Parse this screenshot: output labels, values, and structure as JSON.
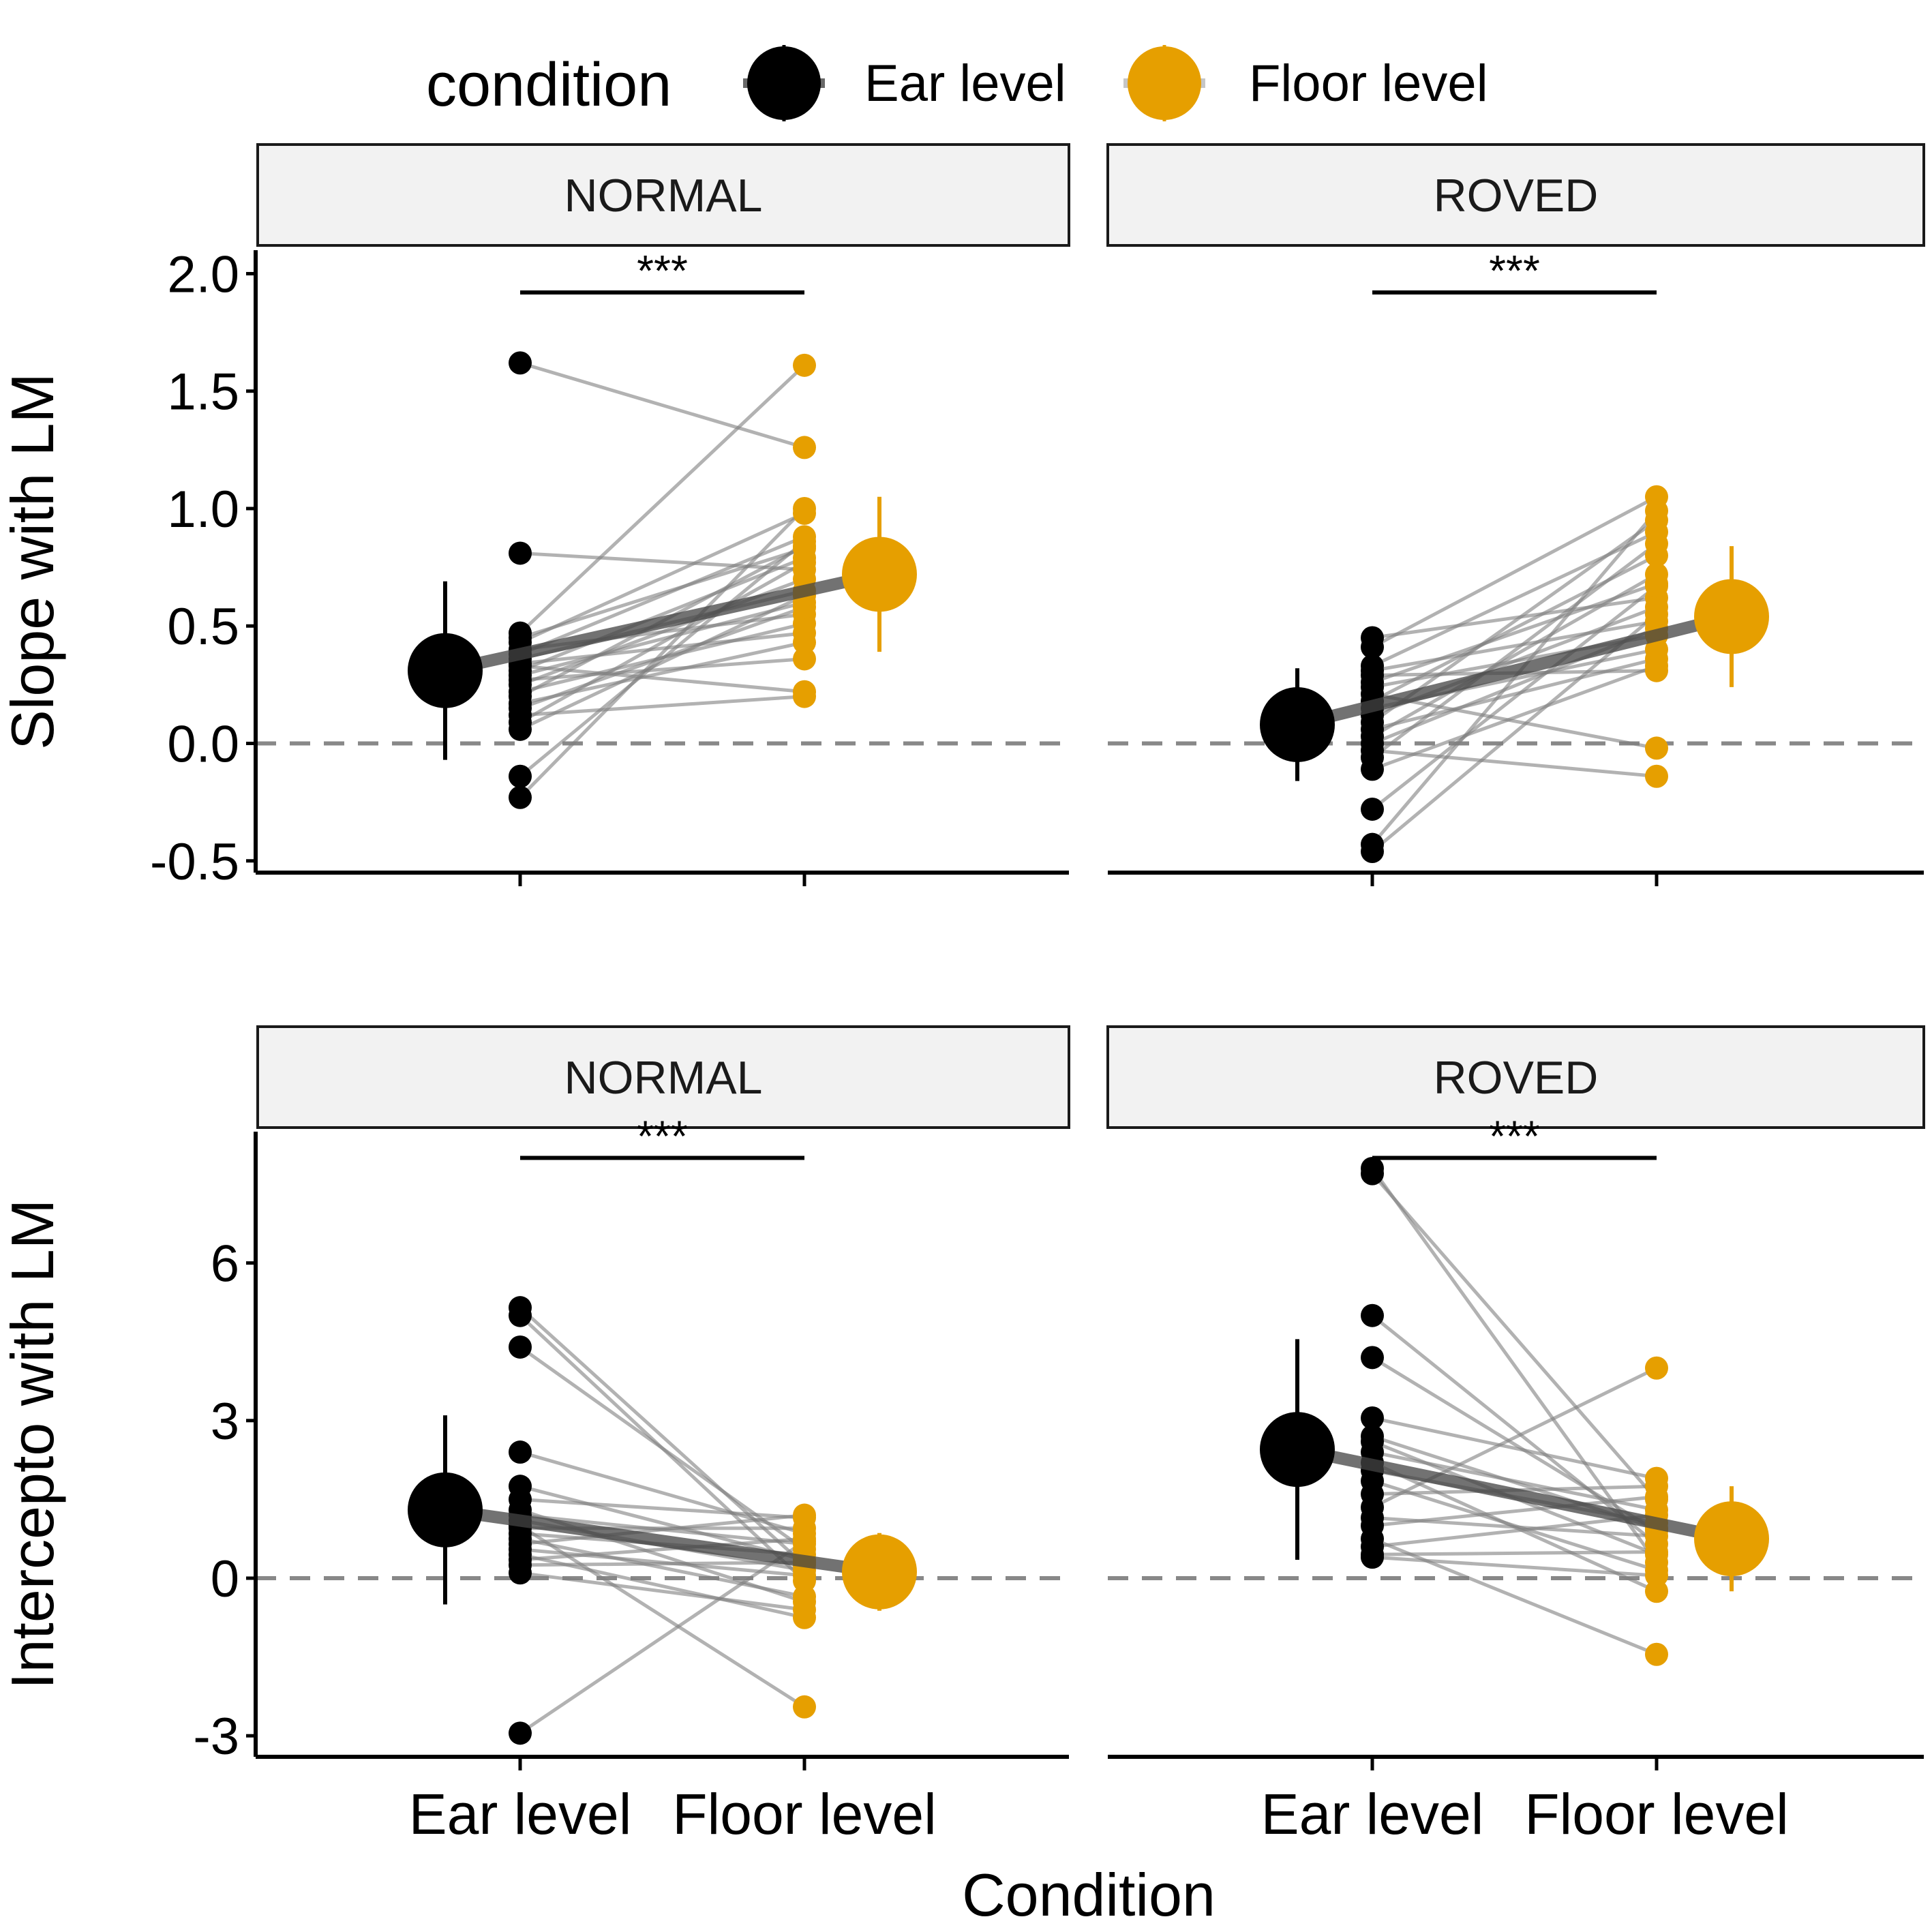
{
  "chart_data": {
    "type": "scatter",
    "legend": {
      "title": "condition",
      "placement": "top",
      "items": [
        {
          "label": "Ear level",
          "color": "#000000"
        },
        {
          "label": "Floor level",
          "color": "#E69F00"
        }
      ]
    },
    "x_title": "Condition",
    "categories": [
      "Ear level",
      "Floor level"
    ],
    "colors": {
      "ear": "#000000",
      "floor": "#E69F00",
      "pair_line": "#7f7f7f",
      "summary_line": "#444444",
      "zero_line": "#888888"
    },
    "rows": [
      {
        "ylabel": "Slope with LM",
        "ylim": [
          -0.55,
          2.1
        ],
        "yticks": [
          -0.5,
          0.0,
          0.5,
          1.0,
          1.5,
          2.0
        ],
        "ytick_labels": [
          "-0.5",
          "0.0",
          "0.5",
          "1.0",
          "1.5",
          "2.0"
        ],
        "panels": [
          {
            "strip": "NORMAL",
            "significance": "***",
            "sig_y": 1.92,
            "summary": {
              "ear": {
                "mean": 0.31,
                "lower": -0.07,
                "upper": 0.69
              },
              "floor": {
                "mean": 0.72,
                "lower": 0.39,
                "upper": 1.05
              }
            },
            "pairs": [
              [
                1.62,
                1.26
              ],
              [
                0.81,
                0.74
              ],
              [
                0.47,
                1.61
              ],
              [
                0.45,
                0.83
              ],
              [
                0.43,
                0.98
              ],
              [
                0.4,
                0.55
              ],
              [
                0.38,
                0.88
              ],
              [
                0.36,
                0.65
              ],
              [
                0.34,
                0.47
              ],
              [
                0.33,
                0.22
              ],
              [
                0.31,
                0.79
              ],
              [
                0.29,
                0.6
              ],
              [
                0.27,
                0.36
              ],
              [
                0.25,
                0.7
              ],
              [
                0.22,
                0.51
              ],
              [
                0.2,
                0.84
              ],
              [
                0.17,
                0.43
              ],
              [
                0.15,
                0.58
              ],
              [
                0.12,
                0.2
              ],
              [
                0.09,
                0.77
              ],
              [
                0.06,
                0.63
              ],
              [
                -0.14,
                0.86
              ],
              [
                -0.23,
                1.0
              ]
            ]
          },
          {
            "strip": "ROVED",
            "significance": "***",
            "sig_y": 1.92,
            "summary": {
              "ear": {
                "mean": 0.08,
                "lower": -0.16,
                "upper": 0.32
              },
              "floor": {
                "mean": 0.54,
                "lower": 0.24,
                "upper": 0.84
              }
            },
            "pairs": [
              [
                0.45,
                0.62
              ],
              [
                0.41,
                1.05
              ],
              [
                0.33,
                0.9
              ],
              [
                0.31,
                0.52
              ],
              [
                0.29,
                0.31
              ],
              [
                0.26,
                0.68
              ],
              [
                0.24,
                0.46
              ],
              [
                0.21,
                -0.02
              ],
              [
                0.18,
                0.8
              ],
              [
                0.15,
                0.4
              ],
              [
                0.12,
                0.58
              ],
              [
                0.09,
                0.95
              ],
              [
                0.06,
                0.36
              ],
              [
                0.03,
                0.72
              ],
              [
                0.0,
                0.49
              ],
              [
                -0.03,
                -0.14
              ],
              [
                -0.06,
                0.85
              ],
              [
                -0.11,
                0.33
              ],
              [
                -0.28,
                0.67
              ],
              [
                -0.43,
                0.99
              ],
              [
                -0.46,
                0.55
              ]
            ]
          }
        ]
      },
      {
        "ylabel": "Intercepto with LM",
        "ylim": [
          -3.4,
          8.5
        ],
        "yticks": [
          -3,
          0,
          3,
          6
        ],
        "ytick_labels": [
          "-3",
          "0",
          "3",
          "6"
        ],
        "panels": [
          {
            "strip": "NORMAL",
            "significance": "***",
            "sig_y": 8.0,
            "summary": {
              "ear": {
                "mean": 1.3,
                "lower": -0.5,
                "upper": 3.1
              },
              "floor": {
                "mean": 0.12,
                "lower": -0.62,
                "upper": 0.86
              }
            },
            "pairs": [
              [
                5.15,
                0.25
              ],
              [
                5.0,
                -0.05
              ],
              [
                4.4,
                0.55
              ],
              [
                2.4,
                0.85
              ],
              [
                1.75,
                0.35
              ],
              [
                1.5,
                1.15
              ],
              [
                1.3,
                -0.45
              ],
              [
                1.2,
                0.65
              ],
              [
                1.1,
                0.15
              ],
              [
                1.0,
                -2.45
              ],
              [
                0.95,
                0.95
              ],
              [
                0.85,
                0.45
              ],
              [
                0.75,
                -0.35
              ],
              [
                0.65,
                1.2
              ],
              [
                0.55,
                0.05
              ],
              [
                0.45,
                -0.75
              ],
              [
                0.35,
                0.75
              ],
              [
                0.25,
                0.3
              ],
              [
                0.1,
                -0.6
              ],
              [
                -2.95,
                0.7
              ]
            ]
          },
          {
            "strip": "ROVED",
            "significance": "***",
            "sig_y": 8.0,
            "summary": {
              "ear": {
                "mean": 2.45,
                "lower": 0.35,
                "upper": 4.55
              },
              "floor": {
                "mean": 0.75,
                "lower": -0.25,
                "upper": 1.75
              }
            },
            "pairs": [
              [
                7.8,
                0.3
              ],
              [
                7.7,
                1.5
              ],
              [
                5.0,
                0.65
              ],
              [
                4.2,
                0.9
              ],
              [
                3.05,
                1.9
              ],
              [
                2.6,
                0.45
              ],
              [
                2.4,
                1.3
              ],
              [
                2.2,
                -0.25
              ],
              [
                2.05,
                1.05
              ],
              [
                1.85,
                0.15
              ],
              [
                1.35,
                4.0
              ],
              [
                1.15,
                0.8
              ],
              [
                1.0,
                1.55
              ],
              [
                0.75,
                -1.45
              ],
              [
                0.6,
                1.2
              ],
              [
                0.45,
                0.5
              ],
              [
                0.4,
                0.05
              ],
              [
                2.7,
                0.95
              ],
              [
                1.6,
                1.75
              ]
            ]
          }
        ]
      }
    ]
  }
}
